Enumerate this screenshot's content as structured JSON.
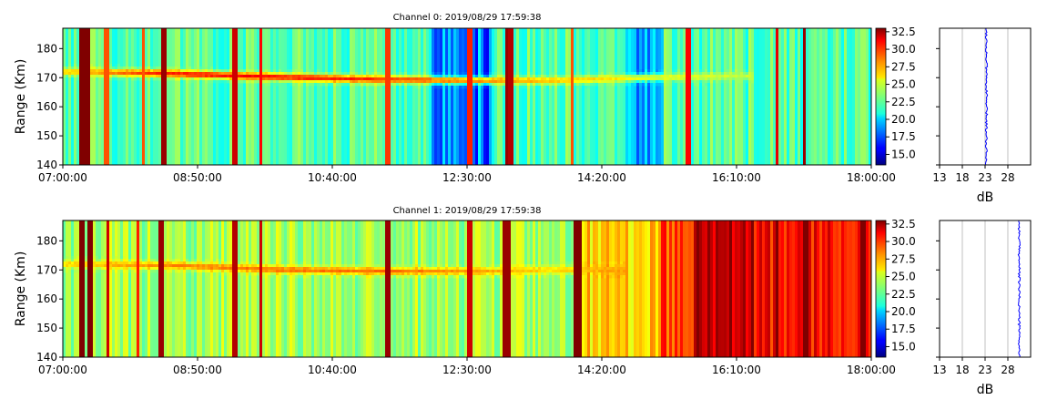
{
  "chart_data": [
    {
      "type": "heatmap",
      "title": "Channel 0: 2019/08/29 17:59:38",
      "xlabel": "",
      "ylabel": "Range (Km)",
      "x_range": [
        "07:00:00",
        "18:00:00"
      ],
      "x_ticks": [
        "07:00:00",
        "08:50:00",
        "10:40:00",
        "12:30:00",
        "14:20:00",
        "16:10:00",
        "18:00:00"
      ],
      "ylim": [
        140,
        187
      ],
      "y_ticks": [
        140,
        150,
        160,
        170,
        180
      ],
      "colorbar": {
        "colormap": "jet",
        "min": 13.5,
        "max": 33.0,
        "ticks": [
          "15.0",
          "17.5",
          "20.0",
          "22.5",
          "25.0",
          "27.5",
          "30.0",
          "32.5"
        ]
      },
      "background_level_db": 22.5,
      "echo_band": {
        "description": "bright trace",
        "points": [
          {
            "time": "07:00:00",
            "range_km": 172,
            "db": 26.5
          },
          {
            "time": "08:20:00",
            "range_km": 171.5,
            "db": 30.0
          },
          {
            "time": "09:30:00",
            "range_km": 170.5,
            "db": 30.5
          },
          {
            "time": "11:00:00",
            "range_km": 169.5,
            "db": 30.0
          },
          {
            "time": "12:30:00",
            "range_km": 169,
            "db": 28.5
          },
          {
            "time": "13:40:00",
            "range_km": 169,
            "db": 27.0
          },
          {
            "time": "15:00:00",
            "range_km": 170,
            "db": 25.5
          },
          {
            "time": "16:15:00",
            "range_km": 170.5,
            "db": 24.5
          }
        ]
      },
      "vertical_stripes": [
        {
          "time": "07:16:00",
          "db": 33.0
        },
        {
          "time": "07:20:00",
          "db": 33.0
        },
        {
          "time": "07:36:00",
          "db": 29.0
        },
        {
          "time": "08:06:00",
          "db": 29.0
        },
        {
          "time": "08:23:00",
          "db": 32.5
        },
        {
          "time": "09:20:00",
          "db": 31.5
        },
        {
          "time": "09:42:00",
          "db": 30.5
        },
        {
          "time": "11:25:00",
          "db": 29.5
        },
        {
          "time": "12:32:00",
          "db": 30.0
        },
        {
          "time": "13:02:00",
          "db": 32.5
        },
        {
          "time": "13:05:00",
          "db": 32.0
        },
        {
          "time": "13:56:00",
          "db": 29.0
        },
        {
          "time": "15:30:00",
          "db": 30.5
        },
        {
          "time": "16:43:00",
          "db": 31.0
        },
        {
          "time": "17:05:00",
          "db": 32.5
        }
      ],
      "low_regions": [
        {
          "from": "12:00:00",
          "to": "12:50:00",
          "db": 18.0
        },
        {
          "from": "14:40:00",
          "to": "15:10:00",
          "db": 19.5
        }
      ],
      "profile": {
        "xlabel": "dB",
        "xlim": [
          13,
          33
        ],
        "x_ticks": [
          "13",
          "18",
          "23",
          "28"
        ],
        "value_db": 23.3,
        "grid": true,
        "color": "#0000ff"
      }
    },
    {
      "type": "heatmap",
      "title": "Channel 1: 2019/08/29 17:59:38",
      "xlabel": "",
      "ylabel": "Range (Km)",
      "x_range": [
        "07:00:00",
        "18:00:00"
      ],
      "x_ticks": [
        "07:00:00",
        "08:50:00",
        "10:40:00",
        "12:30:00",
        "14:20:00",
        "16:10:00",
        "18:00:00"
      ],
      "ylim": [
        140,
        187
      ],
      "y_ticks": [
        140,
        150,
        160,
        170,
        180
      ],
      "colorbar": {
        "colormap": "jet",
        "min": 13.5,
        "max": 33.0,
        "ticks": [
          "15.0",
          "17.5",
          "20.0",
          "22.5",
          "25.0",
          "27.5",
          "30.0",
          "32.5"
        ]
      },
      "background_segments": [
        {
          "from": "07:00:00",
          "to": "14:00:00",
          "db": 24.0
        },
        {
          "from": "14:00:00",
          "to": "15:05:00",
          "db": 26.5
        },
        {
          "from": "15:05:00",
          "to": "15:35:00",
          "db": 29.0
        },
        {
          "from": "15:35:00",
          "to": "16:25:00",
          "db": 32.0
        },
        {
          "from": "16:25:00",
          "to": "18:00:00",
          "db": 30.5
        }
      ],
      "echo_band": {
        "description": "bright trace",
        "points": [
          {
            "time": "07:00:00",
            "range_km": 172,
            "db": 26.5
          },
          {
            "time": "08:30:00",
            "range_km": 171.5,
            "db": 28.0
          },
          {
            "time": "10:00:00",
            "range_km": 170,
            "db": 28.5
          },
          {
            "time": "11:30:00",
            "range_km": 169.5,
            "db": 28.5
          },
          {
            "time": "12:40:00",
            "range_km": 169.5,
            "db": 27.5
          },
          {
            "time": "13:40:00",
            "range_km": 170,
            "db": 26.5
          },
          {
            "time": "14:30:00",
            "range_km": 170,
            "db": 27.5
          }
        ]
      },
      "vertical_stripes": [
        {
          "time": "07:16:00",
          "db": 33.0
        },
        {
          "time": "07:22:00",
          "db": 33.0
        },
        {
          "time": "07:37:00",
          "db": 31.5
        },
        {
          "time": "08:01:00",
          "db": 30.0
        },
        {
          "time": "08:20:00",
          "db": 32.5
        },
        {
          "time": "09:20:00",
          "db": 32.0
        },
        {
          "time": "09:42:00",
          "db": 31.5
        },
        {
          "time": "11:25:00",
          "db": 32.5
        },
        {
          "time": "12:32:00",
          "db": 31.5
        },
        {
          "time": "13:00:00",
          "db": 32.5
        },
        {
          "time": "13:04:00",
          "db": 32.5
        },
        {
          "time": "13:59:00",
          "db": 33.0
        },
        {
          "time": "14:02:00",
          "db": 33.0
        },
        {
          "time": "16:43:00",
          "db": 33.0
        },
        {
          "time": "17:07:00",
          "db": 33.0
        },
        {
          "time": "17:53:00",
          "db": 33.0
        }
      ],
      "profile": {
        "xlabel": "dB",
        "xlim": [
          13,
          33
        ],
        "x_ticks": [
          "13",
          "18",
          "23",
          "28"
        ],
        "value_db": 30.5,
        "grid": true,
        "color": "#0000ff"
      }
    }
  ]
}
